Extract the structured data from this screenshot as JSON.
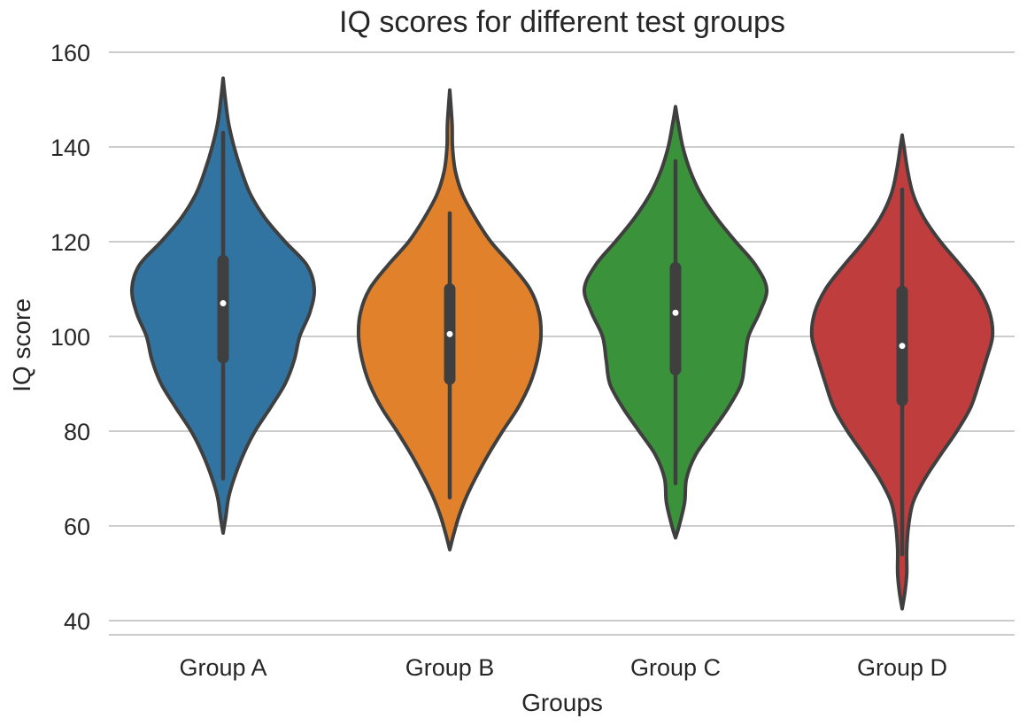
{
  "chart_data": {
    "type": "violin",
    "title": "IQ scores for different test groups",
    "xlabel": "Groups",
    "ylabel": "IQ score",
    "ylim": [
      37,
      160
    ],
    "yticks": [
      40,
      60,
      80,
      100,
      120,
      140,
      160
    ],
    "categories": [
      "Group A",
      "Group B",
      "Group C",
      "Group D"
    ],
    "colors": [
      "#3274a1",
      "#e1812c",
      "#3a923a",
      "#c03d3e"
    ],
    "outline_color": "#3f3f3f",
    "grid": "horizontal",
    "series": [
      {
        "min": 58.5,
        "max": 154.5,
        "q1": 95.5,
        "median": 107,
        "q3": 116,
        "whisker_low": 70,
        "whisker_high": 143,
        "profile": [
          [
            58.5,
            0
          ],
          [
            62,
            0.03
          ],
          [
            66,
            0.06
          ],
          [
            70,
            0.12
          ],
          [
            75,
            0.22
          ],
          [
            80,
            0.35
          ],
          [
            85,
            0.52
          ],
          [
            90,
            0.68
          ],
          [
            95,
            0.78
          ],
          [
            100,
            0.84
          ],
          [
            105,
            0.95
          ],
          [
            110,
            1.0
          ],
          [
            115,
            0.92
          ],
          [
            120,
            0.68
          ],
          [
            125,
            0.46
          ],
          [
            130,
            0.3
          ],
          [
            135,
            0.2
          ],
          [
            140,
            0.12
          ],
          [
            145,
            0.06
          ],
          [
            150,
            0.025
          ],
          [
            154.5,
            0
          ]
        ]
      },
      {
        "min": 55,
        "max": 152,
        "q1": 91,
        "median": 100.5,
        "q3": 110,
        "whisker_low": 66,
        "whisker_high": 126,
        "profile": [
          [
            55,
            0
          ],
          [
            58,
            0.04
          ],
          [
            62,
            0.1
          ],
          [
            66,
            0.18
          ],
          [
            70,
            0.28
          ],
          [
            75,
            0.42
          ],
          [
            80,
            0.58
          ],
          [
            85,
            0.75
          ],
          [
            90,
            0.88
          ],
          [
            95,
            0.96
          ],
          [
            100,
            1.0
          ],
          [
            105,
            0.98
          ],
          [
            110,
            0.88
          ],
          [
            115,
            0.68
          ],
          [
            120,
            0.45
          ],
          [
            125,
            0.28
          ],
          [
            130,
            0.14
          ],
          [
            135,
            0.06
          ],
          [
            140,
            0.03
          ],
          [
            145,
            0.025
          ],
          [
            152,
            0
          ]
        ]
      },
      {
        "min": 57.5,
        "max": 148.5,
        "q1": 93,
        "median": 105,
        "q3": 114.5,
        "whisker_low": 69,
        "whisker_high": 137,
        "profile": [
          [
            57.5,
            0
          ],
          [
            60,
            0.04
          ],
          [
            65,
            0.1
          ],
          [
            70,
            0.12
          ],
          [
            75,
            0.22
          ],
          [
            80,
            0.4
          ],
          [
            85,
            0.58
          ],
          [
            90,
            0.72
          ],
          [
            95,
            0.76
          ],
          [
            100,
            0.8
          ],
          [
            105,
            0.92
          ],
          [
            110,
            1.0
          ],
          [
            115,
            0.88
          ],
          [
            120,
            0.66
          ],
          [
            125,
            0.45
          ],
          [
            130,
            0.28
          ],
          [
            135,
            0.16
          ],
          [
            140,
            0.08
          ],
          [
            145,
            0.03
          ],
          [
            148.5,
            0
          ]
        ]
      },
      {
        "min": 42.5,
        "max": 142.5,
        "q1": 86.5,
        "median": 98,
        "q3": 109.5,
        "whisker_low": 54,
        "whisker_high": 131,
        "profile": [
          [
            42.5,
            0
          ],
          [
            46,
            0.03
          ],
          [
            50,
            0.05
          ],
          [
            55,
            0.05
          ],
          [
            60,
            0.07
          ],
          [
            65,
            0.12
          ],
          [
            70,
            0.25
          ],
          [
            75,
            0.42
          ],
          [
            80,
            0.6
          ],
          [
            85,
            0.75
          ],
          [
            90,
            0.84
          ],
          [
            95,
            0.92
          ],
          [
            100,
            0.99
          ],
          [
            105,
            0.96
          ],
          [
            110,
            0.84
          ],
          [
            115,
            0.64
          ],
          [
            120,
            0.42
          ],
          [
            125,
            0.24
          ],
          [
            130,
            0.12
          ],
          [
            135,
            0.06
          ],
          [
            140,
            0.02
          ],
          [
            142.5,
            0
          ]
        ]
      }
    ]
  }
}
